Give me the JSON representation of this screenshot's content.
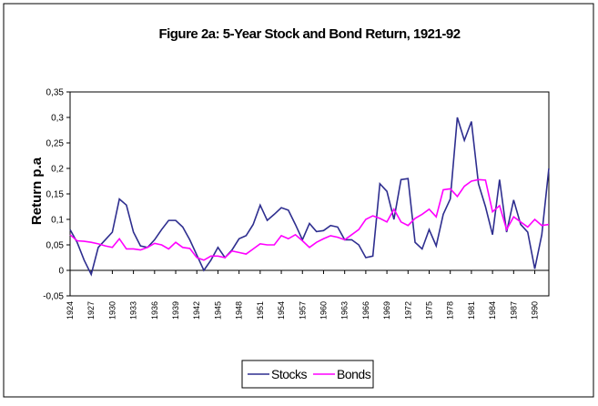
{
  "chart_data": {
    "type": "line",
    "title": "Figure 2a: 5-Year Stock and Bond Return, 1921-92",
    "y_label": "Return p.a",
    "categories": [
      "1924",
      null,
      null,
      "1927",
      null,
      null,
      "1930",
      null,
      null,
      "1933",
      null,
      null,
      "1936",
      null,
      null,
      "1939",
      null,
      null,
      "1942",
      null,
      null,
      "1945",
      null,
      null,
      "1948",
      null,
      null,
      "1951",
      null,
      null,
      "1954",
      null,
      null,
      "1957",
      null,
      null,
      "1960",
      null,
      null,
      "1963",
      null,
      null,
      "1966",
      null,
      null,
      "1969",
      null,
      null,
      "1972",
      null,
      null,
      "1975",
      null,
      null,
      "1978",
      null,
      null,
      "1981",
      null,
      null,
      "1984",
      null,
      null,
      "1987",
      null,
      null,
      "1990",
      null,
      null
    ],
    "series": [
      {
        "name": "Stocks",
        "color": "#2e2e8f",
        "values": [
          0.08,
          0.055,
          0.02,
          -0.008,
          0.045,
          0.06,
          0.075,
          0.14,
          0.128,
          0.075,
          0.048,
          0.045,
          0.06,
          0.08,
          0.098,
          0.098,
          0.085,
          0.06,
          0.03,
          0.0,
          0.02,
          0.045,
          0.025,
          0.04,
          0.062,
          0.068,
          0.09,
          0.128,
          0.098,
          0.11,
          0.123,
          0.118,
          0.09,
          0.06,
          0.092,
          0.076,
          0.078,
          0.088,
          0.085,
          0.06,
          0.06,
          0.05,
          0.025,
          0.028,
          0.17,
          0.155,
          0.1,
          0.178,
          0.18,
          0.055,
          0.042,
          0.08,
          0.048,
          0.11,
          0.14,
          0.3,
          0.255,
          0.292,
          0.17,
          0.125,
          0.07,
          0.178,
          0.075,
          0.138,
          0.09,
          0.075,
          0.003,
          0.07,
          0.2
        ]
      },
      {
        "name": "Bonds",
        "color": "#ff00ff",
        "values": [
          0.07,
          0.058,
          0.057,
          0.055,
          0.052,
          0.048,
          0.045,
          0.062,
          0.042,
          0.042,
          0.04,
          0.045,
          0.053,
          0.05,
          0.042,
          0.055,
          0.045,
          0.043,
          0.025,
          0.02,
          0.028,
          0.028,
          0.025,
          0.038,
          0.035,
          0.032,
          0.042,
          0.052,
          0.05,
          0.05,
          0.068,
          0.062,
          0.07,
          0.058,
          0.045,
          0.055,
          0.062,
          0.068,
          0.065,
          0.06,
          0.07,
          0.08,
          0.1,
          0.107,
          0.102,
          0.095,
          0.12,
          0.095,
          0.088,
          0.102,
          0.11,
          0.12,
          0.105,
          0.158,
          0.16,
          0.145,
          0.165,
          0.175,
          0.178,
          0.177,
          0.115,
          0.127,
          0.08,
          0.105,
          0.095,
          0.085,
          0.1,
          0.088,
          0.09
        ]
      }
    ],
    "ylim": [
      -0.05,
      0.35
    ],
    "yticks": [
      {
        "value": -0.05,
        "label": "-0,05"
      },
      0,
      {
        "value": 0.05,
        "label": "0,05"
      },
      {
        "value": 0.1,
        "label": "0,1"
      },
      {
        "value": 0.15,
        "label": "0,15"
      },
      {
        "value": 0.2,
        "label": "0,2"
      },
      {
        "value": 0.25,
        "label": "0,25"
      },
      {
        "value": 0.3,
        "label": "0,3"
      },
      {
        "value": 0.35,
        "label": "0,35"
      }
    ],
    "grid": false,
    "legend": "bottom"
  }
}
